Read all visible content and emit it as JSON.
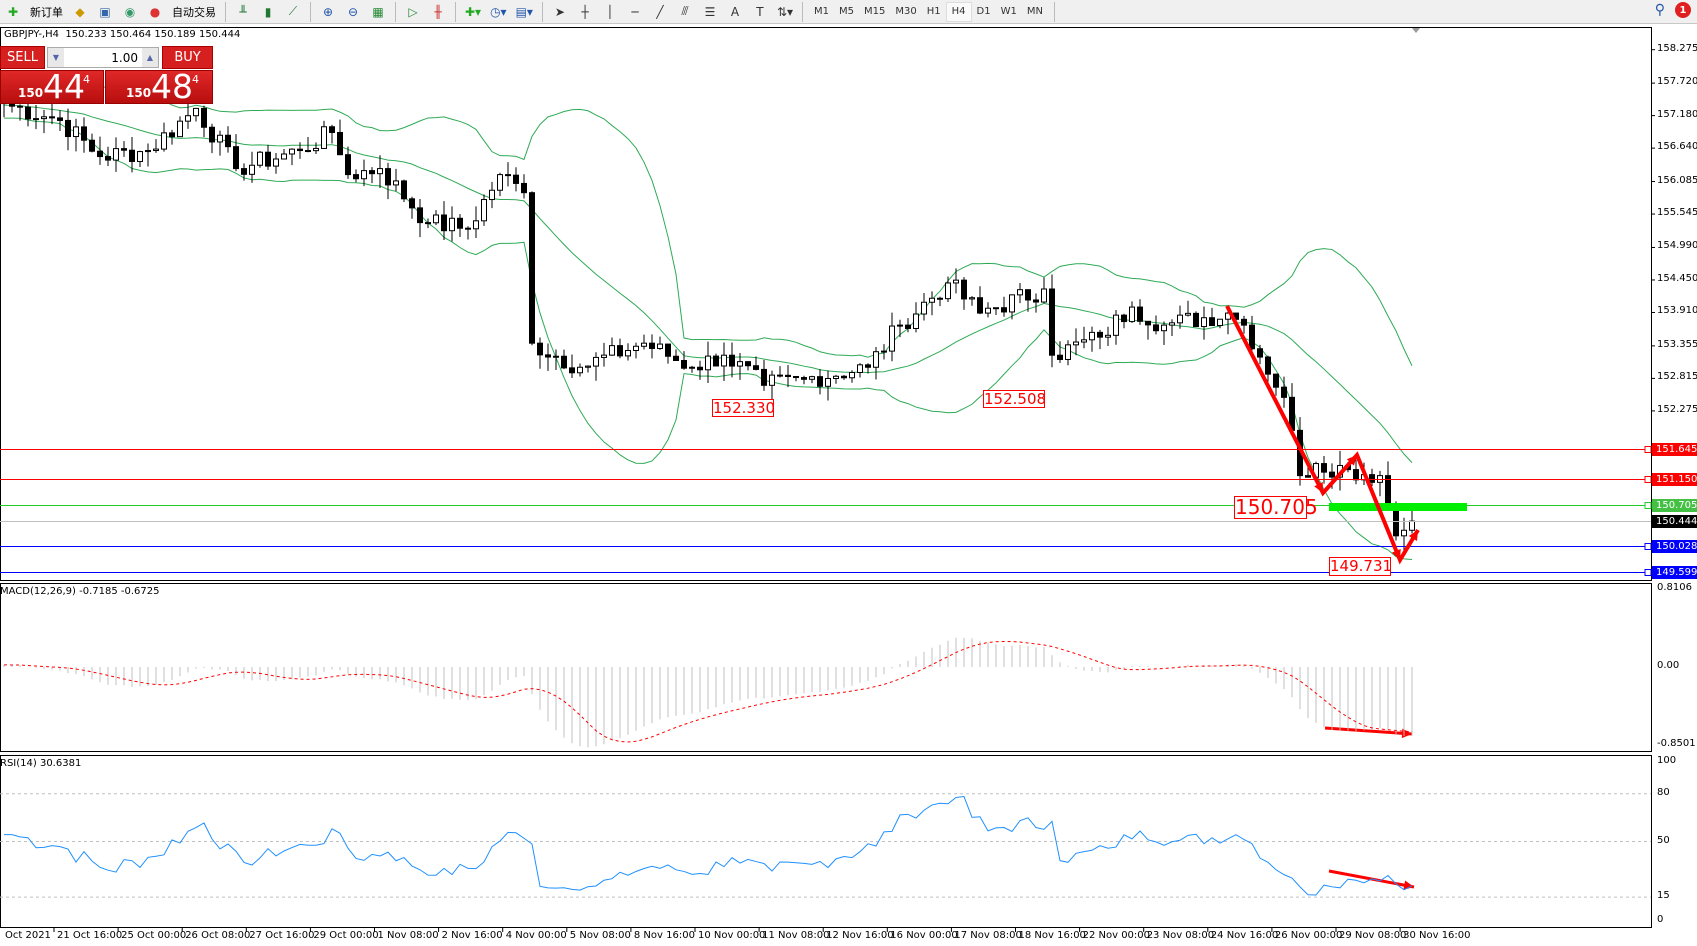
{
  "toolbar": {
    "new_order": "新订单",
    "auto_trading": "自动交易",
    "timeframes": [
      "M1",
      "M5",
      "M15",
      "M30",
      "H1",
      "H4",
      "D1",
      "W1",
      "MN"
    ],
    "active_timeframe": "H4",
    "notifications": "1",
    "icons": [
      "new-order-icon",
      "history-icon",
      "navigator-icon",
      "signals-icon",
      "auto-trading-icon",
      "bar-chart-icon",
      "candlestick-icon",
      "line-chart-icon",
      "zoom-in-icon",
      "zoom-out-icon",
      "tile-icon",
      "autoscroll-icon",
      "chart-shift-icon",
      "indicators-icon",
      "periods-icon",
      "templates-icon",
      "cursor-icon",
      "crosshair-icon",
      "vertical-line-icon",
      "horizontal-line-icon",
      "trendline-icon",
      "fibo-icon",
      "text-icon",
      "label-icon",
      "arrows-icon"
    ]
  },
  "header": {
    "symbol": "GBPJPY-,H4",
    "ohlc": "150.233 150.464 150.189 150.444"
  },
  "trade_panel": {
    "sell": "SELL",
    "buy": "BUY",
    "lot": "1.00",
    "sell_price": {
      "prefix": "150",
      "big": "44",
      "sup": "4"
    },
    "buy_price": {
      "prefix": "150",
      "big": "48",
      "sup": "4"
    }
  },
  "colors": {
    "bull_bear": "#000000",
    "bands": "#2eaa55",
    "resistance": "#ff0000",
    "support_green": "#22cc22",
    "support_blue": "#0000ff",
    "current": "#c0c0c0",
    "annotation": "#ff0000"
  },
  "chart_data": [
    {
      "type": "candlestick",
      "symbol": "GBPJPY-",
      "timeframe": "H4",
      "price_axis": [
        "158.275",
        "157.720",
        "157.180",
        "156.640",
        "156.085",
        "155.545",
        "154.990",
        "154.450",
        "153.910",
        "153.355",
        "152.815",
        "152.275"
      ],
      "ylim": [
        149.5,
        158.4
      ],
      "time_axis": [
        "Oct 2021",
        "21 Oct 16:00",
        "25 Oct 00:00",
        "26 Oct 08:00",
        "27 Oct 16:00",
        "29 Oct 00:00",
        "1 Nov 08:00",
        "2 Nov 16:00",
        "4 Nov 00:00",
        "5 Nov 08:00",
        "8 Nov 16:00",
        "10 Nov 00:00",
        "11 Nov 08:00",
        "12 Nov 16:00",
        "16 Nov 00:00",
        "17 Nov 08:00",
        "18 Nov 16:00",
        "22 Nov 00:00",
        "23 Nov 08:00",
        "24 Nov 16:00",
        "26 Nov 00:00",
        "29 Nov 08:00",
        "30 Nov 16:00"
      ],
      "close_keypoints": [
        [
          0,
          157.38
        ],
        [
          7,
          157.1
        ],
        [
          12,
          156.5
        ],
        [
          18,
          156.6
        ],
        [
          24,
          157.3
        ],
        [
          29,
          156.3
        ],
        [
          37,
          156.6
        ],
        [
          41,
          156.9
        ],
        [
          43,
          156.2
        ],
        [
          47,
          156.3
        ],
        [
          53,
          155.4
        ],
        [
          58,
          155.3
        ],
        [
          62,
          156.2
        ],
        [
          65,
          155.9
        ],
        [
          66,
          153.4
        ],
        [
          72,
          153.0
        ],
        [
          80,
          153.4
        ],
        [
          86,
          153.0
        ],
        [
          90,
          153.2
        ],
        [
          95,
          152.7
        ],
        [
          100,
          152.8
        ],
        [
          108,
          153.0
        ],
        [
          112,
          153.7
        ],
        [
          118,
          154.4
        ],
        [
          122,
          153.9
        ],
        [
          130,
          154.3
        ],
        [
          131,
          153.2
        ],
        [
          137,
          153.5
        ],
        [
          141,
          154.0
        ],
        [
          145,
          153.7
        ],
        [
          153,
          153.9
        ],
        [
          155,
          153.7
        ],
        [
          160,
          152.5
        ],
        [
          162,
          151.2
        ],
        [
          164,
          151.4
        ],
        [
          168,
          151.3
        ],
        [
          172,
          151.2
        ],
        [
          174,
          150.2
        ],
        [
          176,
          150.444
        ]
      ],
      "overlays": [
        "Bollinger Bands"
      ],
      "horizontal_lines": [
        {
          "price": "151.645",
          "color": "#ff0000"
        },
        {
          "price": "151.150",
          "color": "#ff0000"
        },
        {
          "price": "150.705",
          "color": "#22cc22"
        },
        {
          "price": "150.444",
          "color": "#c0c0c0"
        },
        {
          "price": "150.028",
          "color": "#0000ff"
        },
        {
          "price": "149.599",
          "color": "#0000ff"
        }
      ],
      "annotations": [
        "152.330",
        "152.508",
        "150.705",
        "149.731"
      ]
    },
    {
      "type": "line",
      "title": "MACD(12,26,9) -0.7185 -0.6725",
      "axis": [
        "0.8106",
        "0.00",
        "-0.8501"
      ]
    },
    {
      "type": "line",
      "title": "RSI(14) 30.6381",
      "axis": [
        "100",
        "80",
        "50",
        "15",
        "0"
      ],
      "levels": [
        80,
        50,
        15
      ]
    }
  ]
}
